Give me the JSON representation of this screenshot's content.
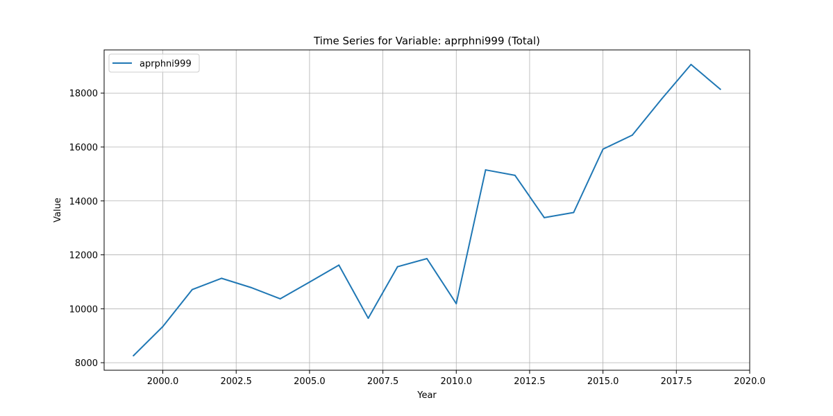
{
  "chart_data": {
    "type": "line",
    "title": "Time Series for Variable: aprphni999 (Total)",
    "xlabel": "Year",
    "ylabel": "Value",
    "xlim": [
      1998.0,
      2020.0
    ],
    "ylim": [
      7720,
      19600
    ],
    "xticks": [
      2000.0,
      2002.5,
      2005.0,
      2007.5,
      2010.0,
      2012.5,
      2015.0,
      2017.5,
      2020.0
    ],
    "xtick_labels": [
      "2000.0",
      "2002.5",
      "2005.0",
      "2007.5",
      "2010.0",
      "2012.5",
      "2015.0",
      "2017.5",
      "2020.0"
    ],
    "yticks": [
      8000,
      10000,
      12000,
      14000,
      16000,
      18000
    ],
    "ytick_labels": [
      "8000",
      "10000",
      "12000",
      "14000",
      "16000",
      "18000"
    ],
    "grid": true,
    "legend_position": "top-left",
    "series": [
      {
        "name": "aprphni999",
        "color": "#1f77b4",
        "x": [
          1999,
          2000,
          2001,
          2002,
          2003,
          2004,
          2005,
          2006,
          2007,
          2008,
          2009,
          2010,
          2011,
          2012,
          2013,
          2014,
          2015,
          2016,
          2017,
          2018,
          2019
        ],
        "y": [
          8260,
          9340,
          10710,
          11130,
          10790,
          10370,
          10990,
          11620,
          9650,
          11560,
          11860,
          10190,
          15150,
          14950,
          13380,
          13570,
          15920,
          16440,
          17780,
          19060,
          18140
        ]
      }
    ]
  }
}
